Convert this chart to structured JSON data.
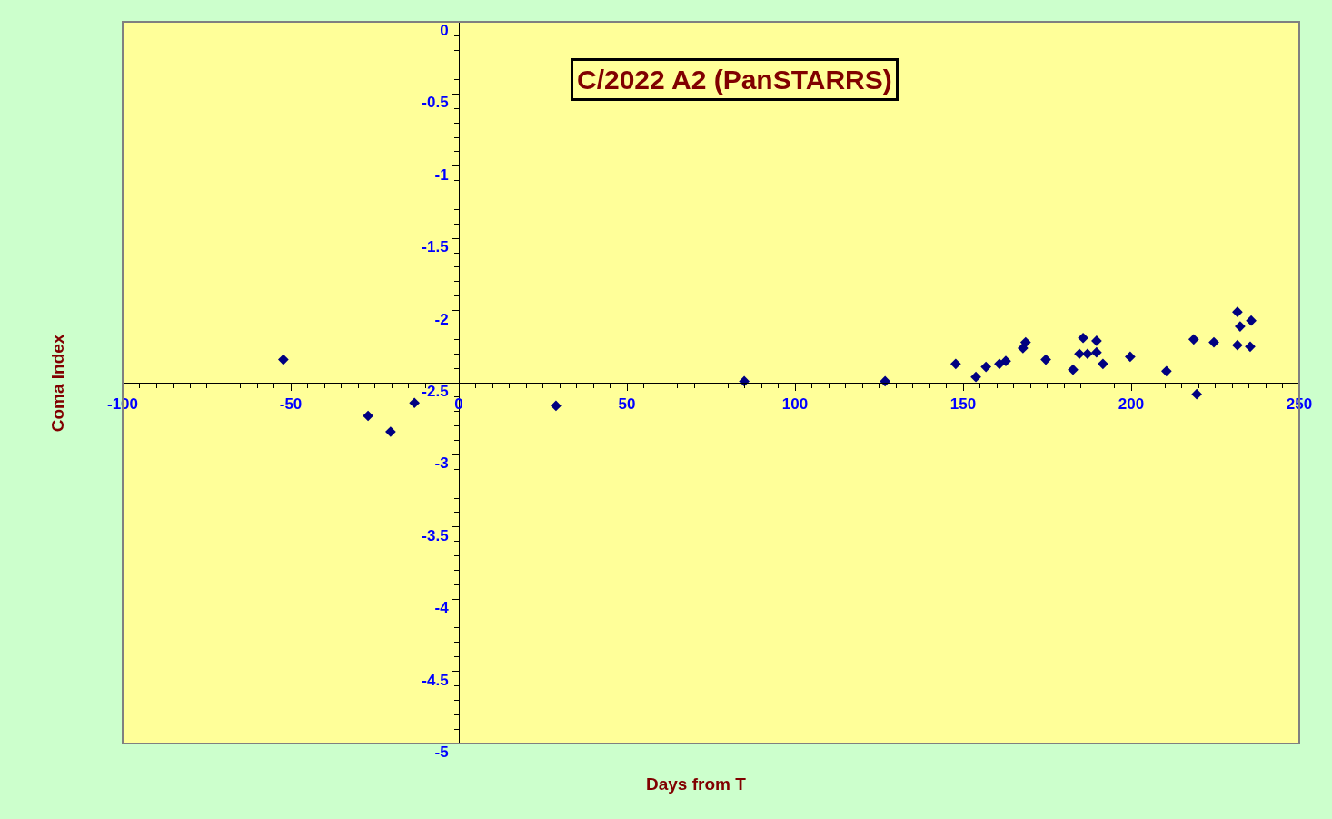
{
  "chart_data": {
    "type": "scatter",
    "title": "C/2022 A2 (PanSTARRS)",
    "xlabel": "Days from T",
    "ylabel": "Coma Index",
    "x": [
      -52.2,
      -27.0,
      -20.3,
      -13.2,
      28.9,
      84.9,
      126.8,
      147.8,
      153.8,
      156.8,
      160.8,
      162.7,
      167.8,
      168.6,
      174.6,
      182.7,
      184.6,
      185.7,
      187.0,
      189.7,
      189.7,
      191.6,
      199.7,
      210.5,
      218.6,
      219.5,
      224.6,
      231.6,
      231.6,
      232.4,
      235.7,
      235.4
    ],
    "series": [
      {
        "color": "#000080",
        "values": [
          -2.34,
          -2.73,
          -2.84,
          -2.64,
          -2.66,
          -2.49,
          -2.49,
          -2.37,
          -2.46,
          -2.39,
          -2.37,
          -2.35,
          -2.26,
          -2.22,
          -2.34,
          -2.41,
          -2.3,
          -2.19,
          -2.3,
          -2.21,
          -2.29,
          -2.37,
          -2.32,
          -2.42,
          -2.2,
          -2.58,
          -2.22,
          -2.01,
          -2.24,
          -2.11,
          -2.07,
          -2.25
        ]
      }
    ],
    "xlim": [
      -100,
      250
    ],
    "xticks": [
      -100,
      -50,
      0,
      50,
      100,
      150,
      200,
      250
    ],
    "ylim": [
      -5,
      0
    ],
    "yticks": [
      -5,
      -4.5,
      -4,
      -3.5,
      -3,
      -2.5,
      -2,
      -1.5,
      -1,
      -0.5,
      0
    ],
    "marker": "diamond",
    "grid": false
  }
}
